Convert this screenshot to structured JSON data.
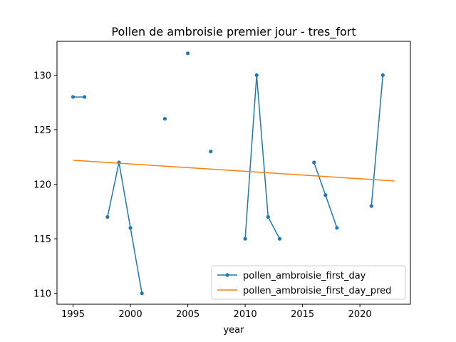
{
  "chart_data": {
    "type": "line",
    "title": "Pollen de ambroisie premier jour - tres_fort",
    "xlabel": "year",
    "ylabel": "",
    "xlim": [
      1993.6,
      2024.4
    ],
    "ylim": [
      109.0,
      133.1
    ],
    "xticks": [
      1995,
      2000,
      2005,
      2010,
      2015,
      2020
    ],
    "yticks": [
      110,
      115,
      120,
      125,
      130
    ],
    "grid": false,
    "legend_position": "lower-right",
    "series": [
      {
        "name": "pollen_ambroisie_first_day",
        "color": "#1f77b4",
        "marker": "circle",
        "points": [
          [
            1995,
            128
          ],
          [
            1996,
            128
          ],
          [
            1997,
            null
          ],
          [
            1998,
            117
          ],
          [
            1999,
            122
          ],
          [
            2000,
            116
          ],
          [
            2001,
            110
          ],
          [
            2002,
            null
          ],
          [
            2003,
            126
          ],
          [
            2004,
            null
          ],
          [
            2005,
            132
          ],
          [
            2006,
            null
          ],
          [
            2007,
            123
          ],
          [
            2008,
            null
          ],
          [
            2009,
            null
          ],
          [
            2010,
            115
          ],
          [
            2011,
            130
          ],
          [
            2012,
            117
          ],
          [
            2013,
            115
          ],
          [
            2014,
            null
          ],
          [
            2015,
            null
          ],
          [
            2016,
            122
          ],
          [
            2017,
            119
          ],
          [
            2018,
            116
          ],
          [
            2019,
            null
          ],
          [
            2020,
            null
          ],
          [
            2021,
            118
          ],
          [
            2022,
            130
          ]
        ]
      },
      {
        "name": "pollen_ambroisie_first_day_pred",
        "color": "#ff7f0e",
        "marker": "none",
        "points": [
          [
            1995,
            122.2
          ],
          [
            2023,
            120.3
          ]
        ]
      }
    ]
  }
}
